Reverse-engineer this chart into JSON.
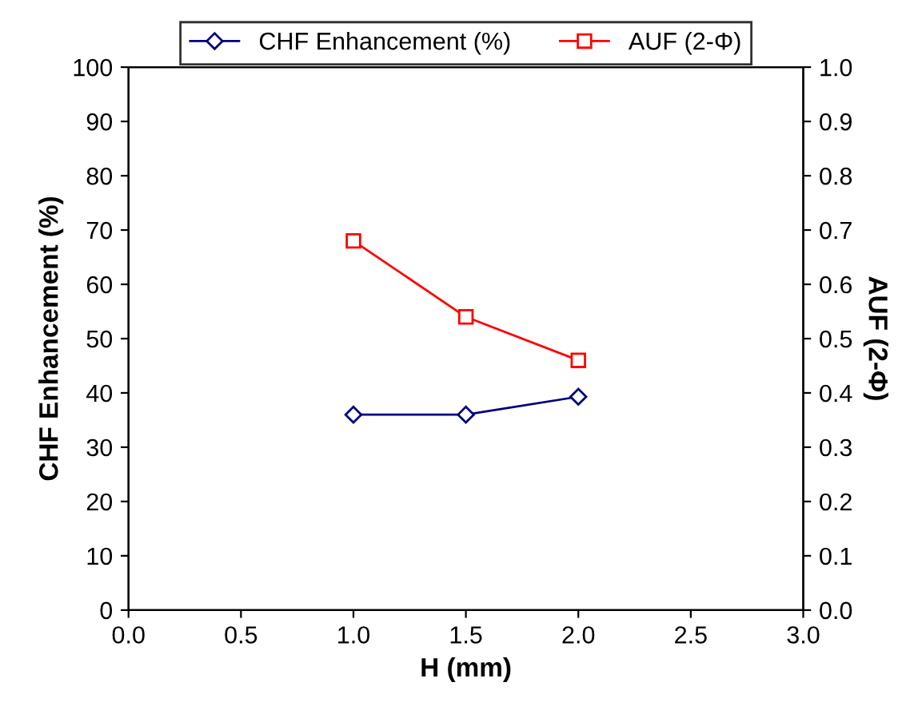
{
  "chart_data": {
    "type": "line",
    "xlabel": "H (mm)",
    "ylabel": "CHF Enhancement (%)",
    "y2label": "AUF (2-Φ)",
    "x": [
      1.0,
      1.5,
      2.0
    ],
    "series": [
      {
        "name": "CHF Enhancement (%)",
        "color": "#000080",
        "marker": "diamond",
        "values": [
          36,
          36,
          39.3
        ]
      },
      {
        "name": "AUF (2-Φ)",
        "color": "#ff0000",
        "marker": "square",
        "axis": "y2",
        "values": [
          0.68,
          0.54,
          0.46
        ]
      }
    ],
    "xlim": [
      0,
      3
    ],
    "xticks": [
      {
        "value": 0,
        "label": "0.0"
      },
      {
        "value": 0.5,
        "label": "0.5"
      },
      {
        "value": 1,
        "label": "1.0"
      },
      {
        "value": 1.5,
        "label": "1.5"
      },
      {
        "value": 2,
        "label": "2.0"
      },
      {
        "value": 2.5,
        "label": "2.5"
      },
      {
        "value": 3,
        "label": "3.0"
      }
    ],
    "ylim": [
      0,
      100
    ],
    "yticks": [
      0,
      10,
      20,
      30,
      40,
      50,
      60,
      70,
      80,
      90,
      100
    ],
    "y2lim": [
      0,
      1
    ],
    "y2ticks": [
      {
        "value": 0,
        "label": "0.0"
      },
      {
        "value": 0.1,
        "label": "0.1"
      },
      {
        "value": 0.2,
        "label": "0.2"
      },
      {
        "value": 0.3,
        "label": "0.3"
      },
      {
        "value": 0.4,
        "label": "0.4"
      },
      {
        "value": 0.5,
        "label": "0.5"
      },
      {
        "value": 0.6,
        "label": "0.6"
      },
      {
        "value": 0.7,
        "label": "0.7"
      },
      {
        "value": 0.8,
        "label": "0.8"
      },
      {
        "value": 0.9,
        "label": "0.9"
      },
      {
        "value": 1,
        "label": "1.0"
      }
    ],
    "grid": false,
    "legend": "top",
    "line_style": "solid"
  }
}
